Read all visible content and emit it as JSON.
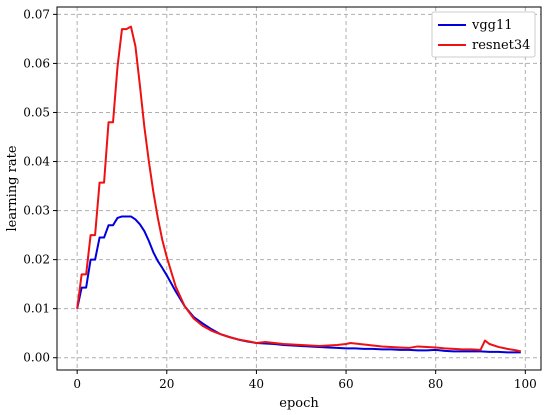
{
  "chart_data": {
    "type": "line",
    "xlabel": "epoch",
    "ylabel": "learning rate",
    "xlim": [
      -4.5,
      103.5
    ],
    "ylim": [
      -0.0025,
      0.0715
    ],
    "xticks": [
      0,
      20,
      40,
      60,
      80,
      100
    ],
    "yticks": [
      0.0,
      0.01,
      0.02,
      0.03,
      0.04,
      0.05,
      0.06,
      0.07
    ],
    "xtick_labels": [
      "0",
      "20",
      "40",
      "60",
      "80",
      "100"
    ],
    "ytick_labels": [
      "0.00",
      "0.01",
      "0.02",
      "0.03",
      "0.04",
      "0.05",
      "0.06",
      "0.07"
    ],
    "grid": true,
    "grid_style": "dashed",
    "legend_position": "top-right",
    "series": [
      {
        "name": "vgg11",
        "color": "#0000dd",
        "x": [
          0,
          1,
          2,
          3,
          4,
          5,
          6,
          7,
          8,
          9,
          10,
          11,
          12,
          13,
          14,
          15,
          16,
          17,
          18,
          19,
          20,
          22,
          24,
          26,
          28,
          30,
          32,
          34,
          36,
          38,
          40,
          42,
          44,
          46,
          48,
          50,
          52,
          54,
          56,
          58,
          60,
          62,
          64,
          66,
          68,
          70,
          72,
          74,
          76,
          78,
          80,
          82,
          84,
          86,
          88,
          90,
          92,
          94,
          96,
          98,
          99
        ],
        "values": [
          0.01,
          0.0143,
          0.0143,
          0.02,
          0.02,
          0.0245,
          0.0245,
          0.027,
          0.027,
          0.0285,
          0.0288,
          0.0288,
          0.0288,
          0.0282,
          0.0272,
          0.0258,
          0.0238,
          0.0215,
          0.0197,
          0.0183,
          0.0168,
          0.0135,
          0.0105,
          0.0083,
          0.007,
          0.0058,
          0.0048,
          0.0042,
          0.0037,
          0.0033,
          0.003,
          0.0029,
          0.0028,
          0.0026,
          0.0025,
          0.0024,
          0.0023,
          0.0022,
          0.0021,
          0.002,
          0.0019,
          0.0019,
          0.0018,
          0.0018,
          0.0017,
          0.0017,
          0.0016,
          0.0016,
          0.0015,
          0.0015,
          0.0016,
          0.0014,
          0.0013,
          0.0013,
          0.0013,
          0.0013,
          0.0012,
          0.0012,
          0.0011,
          0.0011,
          0.0011
        ]
      },
      {
        "name": "resnet34",
        "color": "#ee1111",
        "x": [
          0,
          1,
          2,
          3,
          4,
          5,
          6,
          7,
          8,
          9,
          10,
          11,
          12,
          13,
          14,
          15,
          16,
          17,
          18,
          19,
          20,
          22,
          24,
          26,
          28,
          30,
          32,
          34,
          36,
          38,
          40,
          42,
          44,
          46,
          48,
          50,
          52,
          54,
          56,
          58,
          60,
          61,
          62,
          64,
          66,
          68,
          70,
          72,
          74,
          76,
          78,
          80,
          82,
          84,
          86,
          88,
          90,
          91,
          92,
          94,
          96,
          98,
          99
        ],
        "values": [
          0.01,
          0.017,
          0.017,
          0.025,
          0.025,
          0.0357,
          0.0357,
          0.048,
          0.048,
          0.0593,
          0.067,
          0.067,
          0.0675,
          0.0635,
          0.0555,
          0.047,
          0.04,
          0.0338,
          0.0285,
          0.024,
          0.0205,
          0.0145,
          0.0105,
          0.008,
          0.0065,
          0.0055,
          0.0048,
          0.0042,
          0.0037,
          0.0034,
          0.003,
          0.0032,
          0.003,
          0.0028,
          0.0027,
          0.0026,
          0.0025,
          0.0024,
          0.0025,
          0.0026,
          0.0028,
          0.003,
          0.0029,
          0.0027,
          0.0025,
          0.0023,
          0.0022,
          0.0021,
          0.002,
          0.0023,
          0.0022,
          0.0021,
          0.0019,
          0.0018,
          0.0017,
          0.0017,
          0.0016,
          0.0035,
          0.0028,
          0.0022,
          0.0018,
          0.0015,
          0.0013
        ]
      }
    ]
  }
}
